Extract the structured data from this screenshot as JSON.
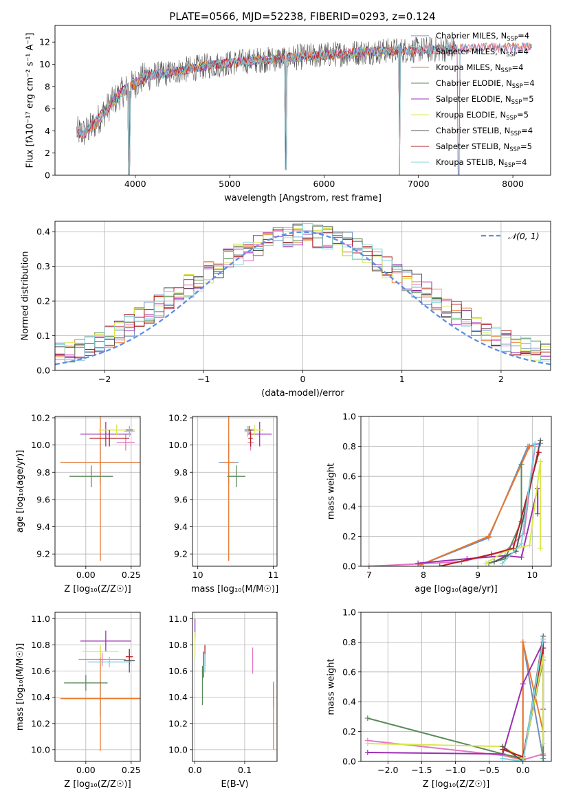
{
  "figure": {
    "title": "PLATE=0566, MJD=52238, FIBERID=0293, z=0.124"
  },
  "colors": {
    "Chabrier MILES": "#6c8ebf",
    "Salpeter MILES": "#e377c2",
    "Kroupa MILES": "#e9782c",
    "Chabrier ELODIE": "#5a8a5a",
    "Salpeter ELODIE": "#9b2fb4",
    "Kroupa ELODIE": "#d7e84a",
    "Chabrier STELIB": "#555555",
    "Salpeter STELIB": "#b22222",
    "Kroupa STELIB": "#7fd4de",
    "gauss": "#5b8ee6",
    "grid": "#b0b0b0"
  },
  "chart_data": [
    {
      "id": "spectrum",
      "type": "line",
      "xlabel": "wavelength [Angstrom, rest frame]",
      "ylabel": "Flux [fλ10⁻¹⁷ erg cm⁻² s⁻¹ A⁻¹]",
      "xlim": [
        3150,
        8400
      ],
      "ylim": [
        0,
        13.5
      ],
      "xticks": [
        4000,
        5000,
        6000,
        7000,
        8000
      ],
      "yticks": [
        0,
        2,
        4,
        6,
        8,
        10,
        12
      ],
      "grid": false,
      "legend_position": "upper right",
      "legend": [
        {
          "label": "Chabrier MILES, N",
          "sub": "SSP",
          "suffix": "=4",
          "key": "Chabrier MILES"
        },
        {
          "label": "Salpeter MILES, N",
          "sub": "SSP",
          "suffix": "=4",
          "key": "Salpeter MILES"
        },
        {
          "label": "Kroupa MILES, N",
          "sub": "SSP",
          "suffix": "=4",
          "key": "Kroupa MILES"
        },
        {
          "label": "Chabrier ELODIE, N",
          "sub": "SSP",
          "suffix": "=4",
          "key": "Chabrier ELODIE"
        },
        {
          "label": "Salpeter ELODIE, N",
          "sub": "SSP",
          "suffix": "=5",
          "key": "Salpeter ELODIE"
        },
        {
          "label": "Kroupa ELODIE, N",
          "sub": "SSP",
          "suffix": "=5",
          "key": "Kroupa ELODIE"
        },
        {
          "label": "Chabrier STELIB, N",
          "sub": "SSP",
          "suffix": "=4",
          "key": "Chabrier STELIB"
        },
        {
          "label": "Salpeter STELIB, N",
          "sub": "SSP",
          "suffix": "=5",
          "key": "Salpeter STELIB"
        },
        {
          "label": "Kroupa STELIB, N",
          "sub": "SSP",
          "suffix": "=4",
          "key": "Kroupa STELIB"
        }
      ],
      "continuum": {
        "x": [
          3350,
          3450,
          3550,
          3650,
          3750,
          3850,
          3950,
          4050,
          4150,
          4250,
          4350,
          4450,
          4600,
          4800,
          5000,
          5200,
          5500,
          5800,
          6100,
          6400,
          6700,
          7000,
          7400,
          7800,
          8200
        ],
        "y": [
          4.0,
          3.8,
          4.4,
          5.5,
          6.5,
          7.4,
          8.0,
          8.6,
          9.0,
          9.1,
          9.2,
          9.4,
          9.6,
          9.9,
          10.1,
          10.3,
          10.5,
          10.7,
          10.9,
          11.1,
          11.2,
          11.3,
          11.4,
          11.5,
          11.5
        ]
      },
      "absorption_features": [
        {
          "x": 3934,
          "y": 0.0
        },
        {
          "x": 5598,
          "y": 0.5
        },
        {
          "x": 6800,
          "y": 0.0
        },
        {
          "x": 7425,
          "y": 0.0
        }
      ]
    },
    {
      "id": "residuals",
      "type": "bar",
      "xlabel": "(data-model)/error",
      "ylabel": "Normed distribution",
      "xlim": [
        -2.5,
        2.5
      ],
      "ylim": [
        0,
        0.43
      ],
      "xticks": [
        -2,
        -1,
        0,
        1,
        2
      ],
      "yticks": [
        0.0,
        0.1,
        0.2,
        0.3,
        0.4
      ],
      "grid": true,
      "legend_position": "upper right",
      "legend": [
        {
          "label": "𝒩(0, 1)",
          "key": "gauss"
        }
      ],
      "bins": {
        "start": -2.5,
        "width": 0.1,
        "count": 50
      }
    },
    {
      "id": "age-vs-Z",
      "type": "scatter",
      "xlabel": "Z [log₁₀(Z/Z☉)]",
      "ylabel": "age  [log₁₀(age/yr)]",
      "xlim": [
        -0.17,
        0.3
      ],
      "ylim": [
        9.11,
        10.21
      ],
      "xticks": [
        0.0,
        0.25
      ],
      "yticks": [
        9.2,
        9.4,
        9.6,
        9.8,
        10.0,
        10.2
      ],
      "grid": true,
      "points": [
        {
          "key": "Chabrier MILES",
          "x": 0.08,
          "y": 9.87,
          "xerr": 0.22,
          "yerr": 0.15
        },
        {
          "key": "Salpeter MILES",
          "x": 0.22,
          "y": 10.02,
          "xerr": 0.05,
          "yerr": 0.06
        },
        {
          "key": "Kroupa MILES",
          "x": 0.08,
          "y": 9.87,
          "xerr": 0.22,
          "yerr": 0.72
        },
        {
          "key": "Chabrier ELODIE",
          "x": 0.03,
          "y": 9.77,
          "xerr": 0.12,
          "yerr": 0.08
        },
        {
          "key": "Salpeter ELODIE",
          "x": 0.11,
          "y": 10.08,
          "xerr": 0.14,
          "yerr": 0.09
        },
        {
          "key": "Kroupa ELODIE",
          "x": 0.17,
          "y": 10.11,
          "xerr": 0.1,
          "yerr": 0.04
        },
        {
          "key": "Chabrier STELIB",
          "x": 0.24,
          "y": 10.11,
          "xerr": 0.02,
          "yerr": 0.03
        },
        {
          "key": "Salpeter STELIB",
          "x": 0.13,
          "y": 10.05,
          "xerr": 0.11,
          "yerr": 0.06
        },
        {
          "key": "Kroupa STELIB",
          "x": 0.24,
          "y": 10.1,
          "xerr": 0.03,
          "yerr": 0.04
        }
      ]
    },
    {
      "id": "age-vs-mass",
      "type": "scatter",
      "xlabel": "mass [log₁₀(M/M☉)]",
      "ylabel": "",
      "xlim": [
        9.93,
        11.05
      ],
      "ylim": [
        9.11,
        10.21
      ],
      "xticks": [
        10,
        11
      ],
      "yticks": [
        9.2,
        9.4,
        9.6,
        9.8,
        10.0,
        10.2
      ],
      "grid": true,
      "points": [
        {
          "key": "Chabrier MILES",
          "x": 10.41,
          "y": 9.87,
          "xerr": 0.13,
          "yerr": 0.15
        },
        {
          "key": "Salpeter MILES",
          "x": 10.7,
          "y": 10.02,
          "xerr": 0.04,
          "yerr": 0.06
        },
        {
          "key": "Kroupa MILES",
          "x": 10.41,
          "y": 9.87,
          "xerr": 0.08,
          "yerr": 0.72
        },
        {
          "key": "Chabrier ELODIE",
          "x": 10.51,
          "y": 9.77,
          "xerr": 0.12,
          "yerr": 0.08
        },
        {
          "key": "Salpeter ELODIE",
          "x": 10.82,
          "y": 10.08,
          "xerr": 0.16,
          "yerr": 0.09
        },
        {
          "key": "Kroupa ELODIE",
          "x": 10.75,
          "y": 10.11,
          "xerr": 0.12,
          "yerr": 0.04
        },
        {
          "key": "Chabrier STELIB",
          "x": 10.68,
          "y": 10.11,
          "xerr": 0.06,
          "yerr": 0.03
        },
        {
          "key": "Salpeter STELIB",
          "x": 10.7,
          "y": 10.05,
          "xerr": 0.03,
          "yerr": 0.06
        },
        {
          "key": "Kroupa STELIB",
          "x": 10.66,
          "y": 10.1,
          "xerr": 0.04,
          "yerr": 0.04
        }
      ]
    },
    {
      "id": "weight-vs-age",
      "type": "line",
      "xlabel": "age  [log₁₀(age/yr)]",
      "ylabel": "mass weight",
      "xlim": [
        6.85,
        10.35
      ],
      "ylim": [
        0,
        1.0
      ],
      "xticks": [
        7,
        8,
        9,
        10
      ],
      "yticks": [
        0.0,
        0.2,
        0.4,
        0.6,
        0.8,
        1.0
      ],
      "grid": true,
      "series": [
        {
          "key": "Chabrier MILES",
          "x": [
            7.95,
            9.2,
            9.92,
            10.15
          ],
          "y": [
            0.01,
            0.19,
            0.8,
            0.82
          ]
        },
        {
          "key": "Salpeter MILES",
          "x": [
            7.0,
            8.7,
            9.5,
            9.85,
            10.05
          ],
          "y": [
            0.0,
            0.03,
            0.1,
            0.22,
            0.8
          ]
        },
        {
          "key": "Kroupa MILES",
          "x": [
            7.95,
            9.2,
            9.95
          ],
          "y": [
            0.01,
            0.2,
            0.8
          ]
        },
        {
          "key": "Chabrier ELODIE",
          "x": [
            9.2,
            9.5,
            9.8,
            9.8
          ],
          "y": [
            0.02,
            0.05,
            0.3,
            0.68
          ]
        },
        {
          "key": "Salpeter ELODIE",
          "x": [
            7.9,
            8.8,
            9.5,
            9.8,
            10.1,
            10.1
          ],
          "y": [
            0.02,
            0.05,
            0.07,
            0.06,
            0.52,
            0.35
          ]
        },
        {
          "key": "Kroupa ELODIE",
          "x": [
            9.15,
            9.5,
            9.95,
            10.15,
            10.15
          ],
          "y": [
            0.02,
            0.1,
            0.14,
            0.7,
            0.12
          ]
        },
        {
          "key": "Chabrier STELIB",
          "x": [
            9.3,
            9.7,
            10.15
          ],
          "y": [
            0.03,
            0.1,
            0.84
          ]
        },
        {
          "key": "Salpeter STELIB",
          "x": [
            8.3,
            9.25,
            9.65,
            10.12
          ],
          "y": [
            0.0,
            0.08,
            0.12,
            0.76
          ]
        },
        {
          "key": "Kroupa STELIB",
          "x": [
            9.45,
            9.8,
            10.05
          ],
          "y": [
            0.02,
            0.15,
            0.82
          ]
        }
      ]
    },
    {
      "id": "mass-vs-Z",
      "type": "scatter",
      "xlabel": "Z [log₁₀(Z/Z☉)]",
      "ylabel": "mass [log₁₀(M/M☉)]",
      "xlim": [
        -0.17,
        0.3
      ],
      "ylim": [
        9.91,
        11.05
      ],
      "xticks": [
        0.0,
        0.25
      ],
      "yticks": [
        10.0,
        10.2,
        10.4,
        10.6,
        10.8,
        11.0
      ],
      "grid": true,
      "points": [
        {
          "key": "Chabrier MILES",
          "x": 0.08,
          "y": 10.39,
          "xerr": 0.22,
          "yerr": 0.13
        },
        {
          "key": "Salpeter MILES",
          "x": 0.09,
          "y": 10.69,
          "xerr": 0.13,
          "yerr": 0.05
        },
        {
          "key": "Kroupa MILES",
          "x": 0.08,
          "y": 10.39,
          "xerr": 0.22,
          "yerr": 0.4
        },
        {
          "key": "Chabrier ELODIE",
          "x": 0.0,
          "y": 10.51,
          "xerr": 0.12,
          "yerr": 0.06
        },
        {
          "key": "Salpeter ELODIE",
          "x": 0.11,
          "y": 10.83,
          "xerr": 0.14,
          "yerr": 0.08
        },
        {
          "key": "Kroupa ELODIE",
          "x": 0.08,
          "y": 10.75,
          "xerr": 0.1,
          "yerr": 0.05
        },
        {
          "key": "Chabrier STELIB",
          "x": 0.24,
          "y": 10.68,
          "xerr": 0.03,
          "yerr": 0.09
        },
        {
          "key": "Salpeter STELIB",
          "x": 0.24,
          "y": 10.71,
          "xerr": 0.02,
          "yerr": 0.06
        },
        {
          "key": "Kroupa STELIB",
          "x": 0.13,
          "y": 10.67,
          "xerr": 0.12,
          "yerr": 0.04
        }
      ]
    },
    {
      "id": "mass-vs-ebv",
      "type": "scatter",
      "xlabel": "E(B-V)",
      "ylabel": "",
      "xlim": [
        -0.005,
        0.165
      ],
      "ylim": [
        9.91,
        11.05
      ],
      "xticks": [
        0.0,
        0.1
      ],
      "yticks": [
        10.0,
        10.2,
        10.4,
        10.6,
        10.8,
        11.0
      ],
      "grid": true,
      "points": [
        {
          "key": "Chabrier MILES",
          "x": 0.158,
          "y": 10.42,
          "xerr": 0,
          "yerr": 0.1
        },
        {
          "key": "Salpeter MILES",
          "x": 0.116,
          "y": 10.68,
          "xerr": 0,
          "yerr": 0.1
        },
        {
          "key": "Kroupa MILES",
          "x": 0.158,
          "y": 10.25,
          "xerr": 0,
          "yerr": 0.25
        },
        {
          "key": "Chabrier ELODIE",
          "x": 0.015,
          "y": 10.49,
          "xerr": 0,
          "yerr": 0.15
        },
        {
          "key": "Salpeter ELODIE",
          "x": 0.0,
          "y": 10.93,
          "xerr": 0,
          "yerr": 0.07
        },
        {
          "key": "Kroupa ELODIE",
          "x": 0.0,
          "y": 10.8,
          "xerr": 0,
          "yerr": 0.1
        },
        {
          "key": "Chabrier STELIB",
          "x": 0.017,
          "y": 10.65,
          "xerr": 0,
          "yerr": 0.1
        },
        {
          "key": "Salpeter STELIB",
          "x": 0.02,
          "y": 10.72,
          "xerr": 0,
          "yerr": 0.08
        },
        {
          "key": "Kroupa STELIB",
          "x": 0.02,
          "y": 10.66,
          "xerr": 0,
          "yerr": 0.07
        }
      ]
    },
    {
      "id": "weight-vs-Z",
      "type": "line",
      "xlabel": "Z [log₁₀(Z/Z☉)]",
      "ylabel": "mass weight",
      "xlim": [
        -2.4,
        0.42
      ],
      "ylim": [
        0,
        1.0
      ],
      "xticks": [
        -2.0,
        -1.5,
        -1.0,
        -0.5,
        0.0
      ],
      "yticks": [
        0.0,
        0.2,
        0.4,
        0.6,
        0.8,
        1.0
      ],
      "grid": true,
      "series": [
        {
          "key": "Chabrier MILES",
          "x": [
            -0.3,
            0.0,
            0.0,
            0.3
          ],
          "y": [
            0.05,
            0.01,
            0.8,
            0.02
          ]
        },
        {
          "key": "Salpeter MILES",
          "x": [
            -2.3,
            -0.3,
            0.0,
            0.3
          ],
          "y": [
            0.14,
            0.04,
            0.01,
            0.05
          ]
        },
        {
          "key": "Kroupa MILES",
          "x": [
            -0.3,
            0.0,
            0.0,
            0.3,
            0.3
          ],
          "y": [
            0.05,
            0.01,
            0.8,
            0.2,
            0.04
          ]
        },
        {
          "key": "Chabrier ELODIE",
          "x": [
            -2.3,
            -0.3,
            0.0,
            0.3,
            0.3
          ],
          "y": [
            0.29,
            0.05,
            0.02,
            0.68,
            0.0
          ]
        },
        {
          "key": "Salpeter ELODIE",
          "x": [
            -2.3,
            -0.3,
            0.0,
            0.3,
            0.3
          ],
          "y": [
            0.06,
            0.05,
            0.52,
            0.8,
            0.35
          ]
        },
        {
          "key": "Kroupa ELODIE",
          "x": [
            -2.3,
            -0.3,
            0.0,
            0.3,
            0.3
          ],
          "y": [
            0.12,
            0.1,
            0.02,
            0.7,
            0.12
          ]
        },
        {
          "key": "Chabrier STELIB",
          "x": [
            -0.3,
            0.0,
            0.3
          ],
          "y": [
            0.1,
            0.0,
            0.84
          ]
        },
        {
          "key": "Salpeter STELIB",
          "x": [
            -0.3,
            0.0,
            0.3
          ],
          "y": [
            0.08,
            0.03,
            0.76
          ]
        },
        {
          "key": "Kroupa STELIB",
          "x": [
            -0.3,
            0.0,
            0.3
          ],
          "y": [
            0.02,
            0.0,
            0.82
          ]
        }
      ]
    }
  ]
}
